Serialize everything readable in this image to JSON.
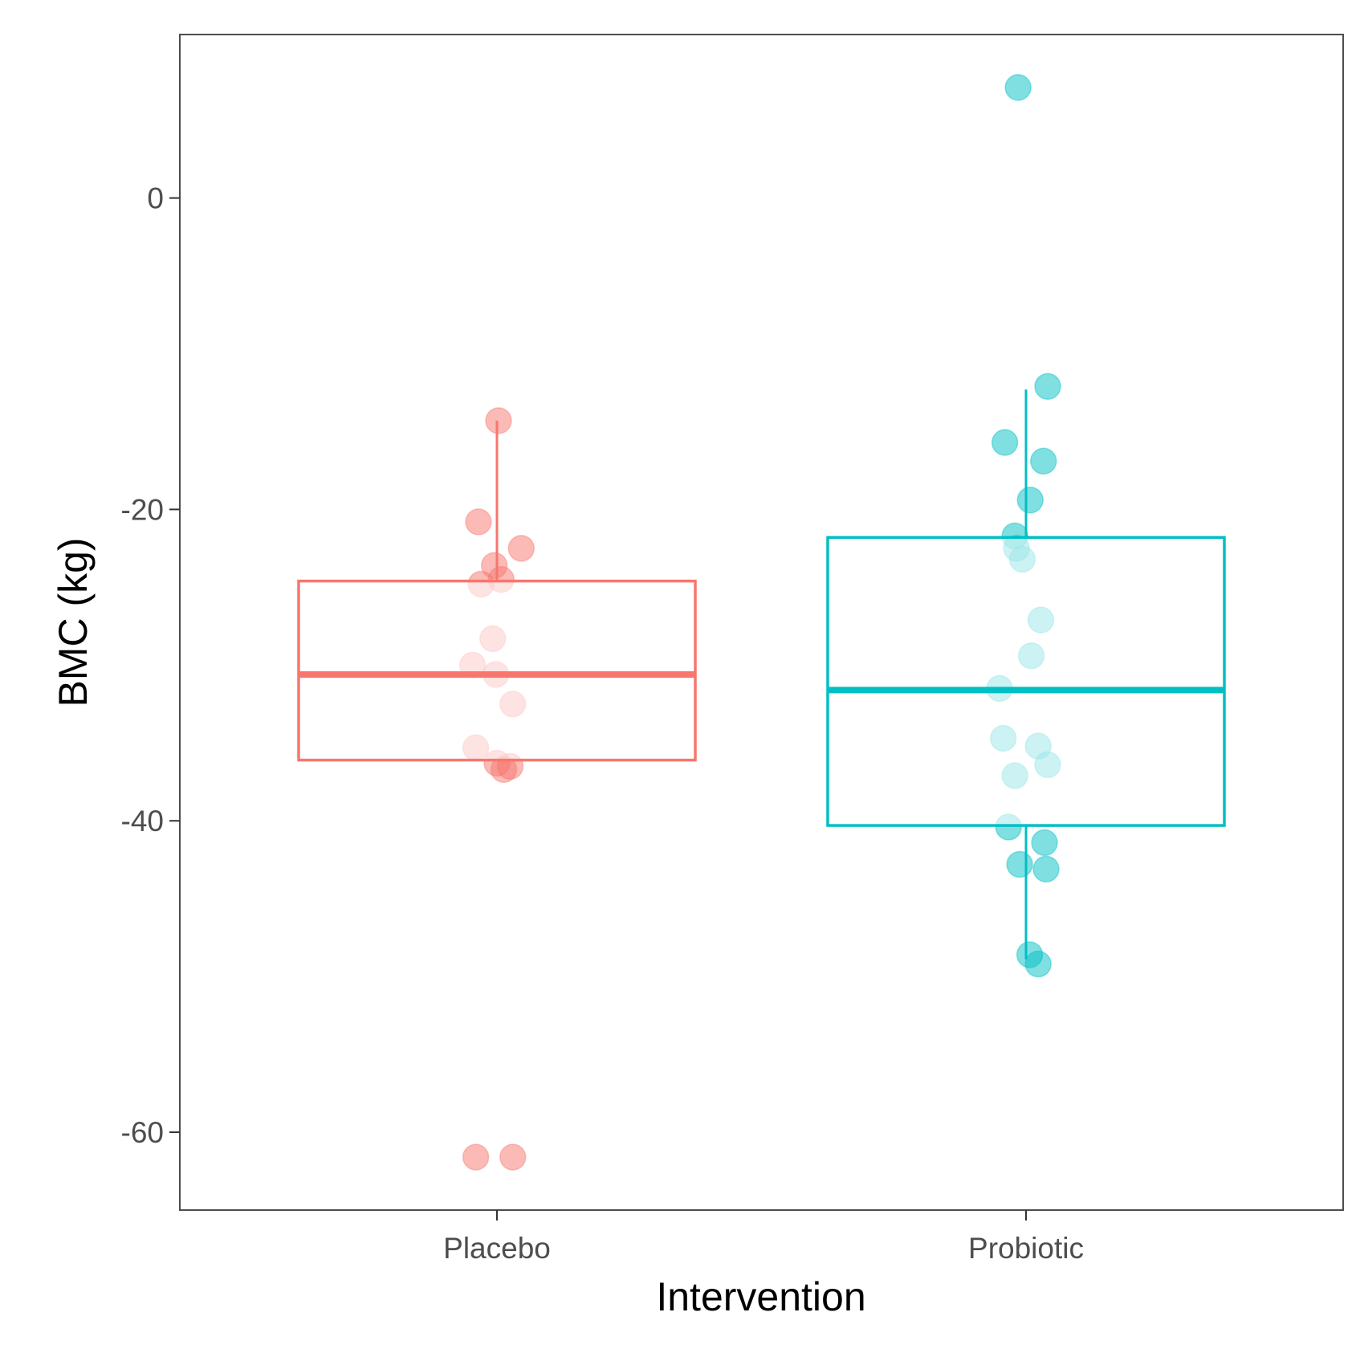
{
  "chart_data": {
    "type": "box",
    "title": "",
    "xlabel": "Intervention",
    "ylabel": "BMC (kg)",
    "categories": [
      "Placebo",
      "Probiotic"
    ],
    "ylim": [
      -65,
      10.5
    ],
    "yticks": [
      0,
      -20,
      -40,
      -60
    ],
    "ytick_labels": [
      "0",
      "-20",
      "-40",
      "-60"
    ],
    "grid": false,
    "legend": "none",
    "colors": {
      "Placebo": "#F8766D",
      "Probiotic": "#00BFC4"
    },
    "boxes": [
      {
        "name": "Placebo",
        "q1": -36.1,
        "median": -30.6,
        "q3": -24.6,
        "whisker_low": -36.1,
        "whisker_high": -14.3
      },
      {
        "name": "Probiotic",
        "q1": -40.3,
        "median": -31.6,
        "q3": -21.8,
        "whisker_low": -48.9,
        "whisker_high": -12.3
      }
    ],
    "points": {
      "Placebo": [
        {
          "y": -14.3,
          "jitter": 0.003
        },
        {
          "y": -20.8,
          "jitter": -0.035
        },
        {
          "y": -22.5,
          "jitter": 0.046
        },
        {
          "y": -23.6,
          "jitter": -0.005
        },
        {
          "y": -24.8,
          "jitter": -0.03
        },
        {
          "y": -24.5,
          "jitter": 0.008
        },
        {
          "y": -28.3,
          "jitter": -0.008
        },
        {
          "y": -30.0,
          "jitter": -0.046
        },
        {
          "y": -30.6,
          "jitter": -0.002
        },
        {
          "y": -32.5,
          "jitter": 0.03
        },
        {
          "y": -35.3,
          "jitter": -0.04
        },
        {
          "y": -36.3,
          "jitter": 0.0
        },
        {
          "y": -36.7,
          "jitter": 0.013
        },
        {
          "y": -36.5,
          "jitter": 0.025
        },
        {
          "y": -61.6,
          "jitter": -0.04
        },
        {
          "y": -61.6,
          "jitter": 0.03
        }
      ],
      "Probiotic": [
        {
          "y": 7.1,
          "jitter": -0.015
        },
        {
          "y": -12.1,
          "jitter": 0.041
        },
        {
          "y": -15.7,
          "jitter": -0.04
        },
        {
          "y": -16.9,
          "jitter": 0.033
        },
        {
          "y": -19.4,
          "jitter": 0.008
        },
        {
          "y": -21.7,
          "jitter": -0.021
        },
        {
          "y": -22.5,
          "jitter": -0.018
        },
        {
          "y": -23.2,
          "jitter": -0.007
        },
        {
          "y": -27.1,
          "jitter": 0.028
        },
        {
          "y": -29.4,
          "jitter": 0.01
        },
        {
          "y": -31.5,
          "jitter": -0.05
        },
        {
          "y": -34.7,
          "jitter": -0.043
        },
        {
          "y": -35.2,
          "jitter": 0.023
        },
        {
          "y": -36.4,
          "jitter": 0.041
        },
        {
          "y": -37.1,
          "jitter": -0.021
        },
        {
          "y": -40.4,
          "jitter": -0.033
        },
        {
          "y": -41.4,
          "jitter": 0.035
        },
        {
          "y": -42.8,
          "jitter": -0.012
        },
        {
          "y": -43.1,
          "jitter": 0.038
        },
        {
          "y": -48.6,
          "jitter": 0.007
        },
        {
          "y": -49.2,
          "jitter": 0.023
        }
      ]
    }
  }
}
